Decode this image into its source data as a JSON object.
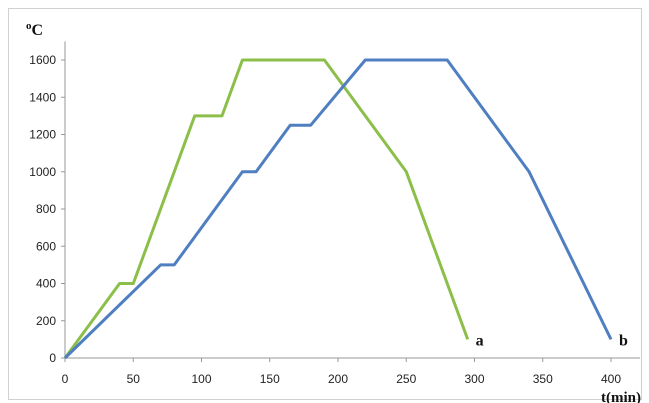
{
  "chart_data": {
    "type": "line",
    "ylabel": "oC",
    "xlabel": "t(min)",
    "xlim": [
      0,
      400
    ],
    "ylim": [
      0,
      1700
    ],
    "xticks": [
      0,
      50,
      100,
      150,
      200,
      250,
      300,
      350,
      400
    ],
    "yticks": [
      0,
      200,
      400,
      600,
      800,
      1000,
      1200,
      1400,
      1600
    ],
    "grid": false,
    "legend": "none",
    "series": [
      {
        "name": "a",
        "color": "#8cbf4a",
        "x": [
          0,
          40,
          50,
          95,
          115,
          130,
          190,
          250,
          295
        ],
        "y": [
          0,
          400,
          400,
          1300,
          1300,
          1600,
          1600,
          1000,
          100
        ]
      },
      {
        "name": "b",
        "color": "#4f7fc1",
        "x": [
          0,
          70,
          80,
          130,
          140,
          165,
          180,
          220,
          280,
          340,
          400
        ],
        "y": [
          0,
          500,
          500,
          1000,
          1000,
          1250,
          1250,
          1600,
          1600,
          1000,
          100
        ]
      }
    ]
  }
}
